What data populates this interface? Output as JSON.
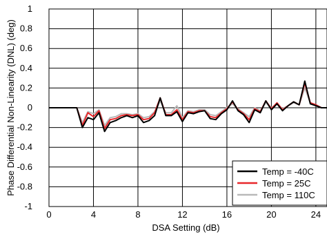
{
  "chart_data": {
    "type": "line",
    "title": "",
    "xlabel": "DSA Setting (dB)",
    "ylabel": "Phase Differential Non-Linearity (DNL) (deg)",
    "xlim": [
      0,
      25
    ],
    "ylim": [
      -1,
      1
    ],
    "x_ticks": [
      0,
      4,
      8,
      12,
      16,
      20,
      24
    ],
    "y_ticks": [
      -1,
      -0.8,
      -0.6,
      -0.4,
      -0.2,
      0,
      0.2,
      0.4,
      0.6,
      0.8,
      1
    ],
    "grid": true,
    "legend_position": "bottom-right",
    "x": [
      0,
      0.5,
      1,
      1.5,
      2,
      2.5,
      3,
      3.5,
      4,
      4.5,
      5,
      5.5,
      6,
      6.5,
      7,
      7.5,
      8,
      8.5,
      9,
      9.5,
      10,
      10.5,
      11,
      11.5,
      12,
      12.5,
      13,
      13.5,
      14,
      14.5,
      15,
      15.5,
      16,
      16.5,
      17,
      17.5,
      18,
      18.5,
      19,
      19.5,
      20,
      20.5,
      21,
      21.5,
      22,
      22.5,
      23,
      23.5,
      24,
      24.5,
      25
    ],
    "series": [
      {
        "name": "Temp = -40C",
        "color": "#000000",
        "values": [
          0,
          0,
          0,
          0,
          0,
          0,
          -0.2,
          -0.1,
          -0.12,
          -0.05,
          -0.24,
          -0.15,
          -0.13,
          -0.1,
          -0.08,
          -0.1,
          -0.08,
          -0.15,
          -0.13,
          -0.08,
          0.1,
          -0.08,
          -0.08,
          -0.04,
          -0.14,
          -0.05,
          -0.06,
          -0.04,
          -0.03,
          -0.11,
          -0.12,
          -0.06,
          -0.02,
          0.07,
          -0.03,
          -0.07,
          -0.15,
          -0.02,
          -0.05,
          0.07,
          -0.02,
          0.04,
          -0.03,
          0.02,
          0.06,
          0.03,
          0.27,
          0.04,
          0.02,
          0,
          0
        ]
      },
      {
        "name": "Temp = 25C",
        "color": "#e8272a",
        "values": [
          0,
          0,
          0,
          0,
          0,
          0,
          -0.18,
          -0.05,
          -0.09,
          -0.03,
          -0.21,
          -0.12,
          -0.11,
          -0.08,
          -0.07,
          -0.08,
          -0.07,
          -0.12,
          -0.11,
          -0.05,
          0.1,
          -0.07,
          -0.07,
          -0.02,
          -0.12,
          -0.04,
          -0.05,
          -0.03,
          -0.03,
          -0.09,
          -0.1,
          -0.05,
          -0.01,
          0.06,
          -0.02,
          -0.06,
          -0.12,
          -0.01,
          -0.04,
          0.07,
          -0.01,
          0.05,
          -0.02,
          0.02,
          0.06,
          0.03,
          0.25,
          0.05,
          0.03,
          0,
          0
        ]
      },
      {
        "name": "Temp = 110C",
        "color": "#b9b9b9",
        "values": [
          0,
          0,
          0,
          0,
          0,
          0,
          -0.15,
          -0.04,
          -0.06,
          -0.02,
          -0.18,
          -0.1,
          -0.09,
          -0.06,
          -0.06,
          -0.07,
          -0.06,
          -0.1,
          -0.09,
          -0.04,
          0.07,
          -0.05,
          -0.05,
          0.02,
          -0.1,
          -0.03,
          -0.04,
          -0.02,
          -0.02,
          -0.07,
          -0.08,
          -0.04,
          0,
          0.04,
          -0.01,
          -0.05,
          -0.09,
          0,
          -0.03,
          0.05,
          0,
          0.04,
          -0.01,
          0.02,
          0.05,
          0.03,
          0.2,
          0.05,
          0.03,
          0,
          0
        ]
      }
    ]
  }
}
